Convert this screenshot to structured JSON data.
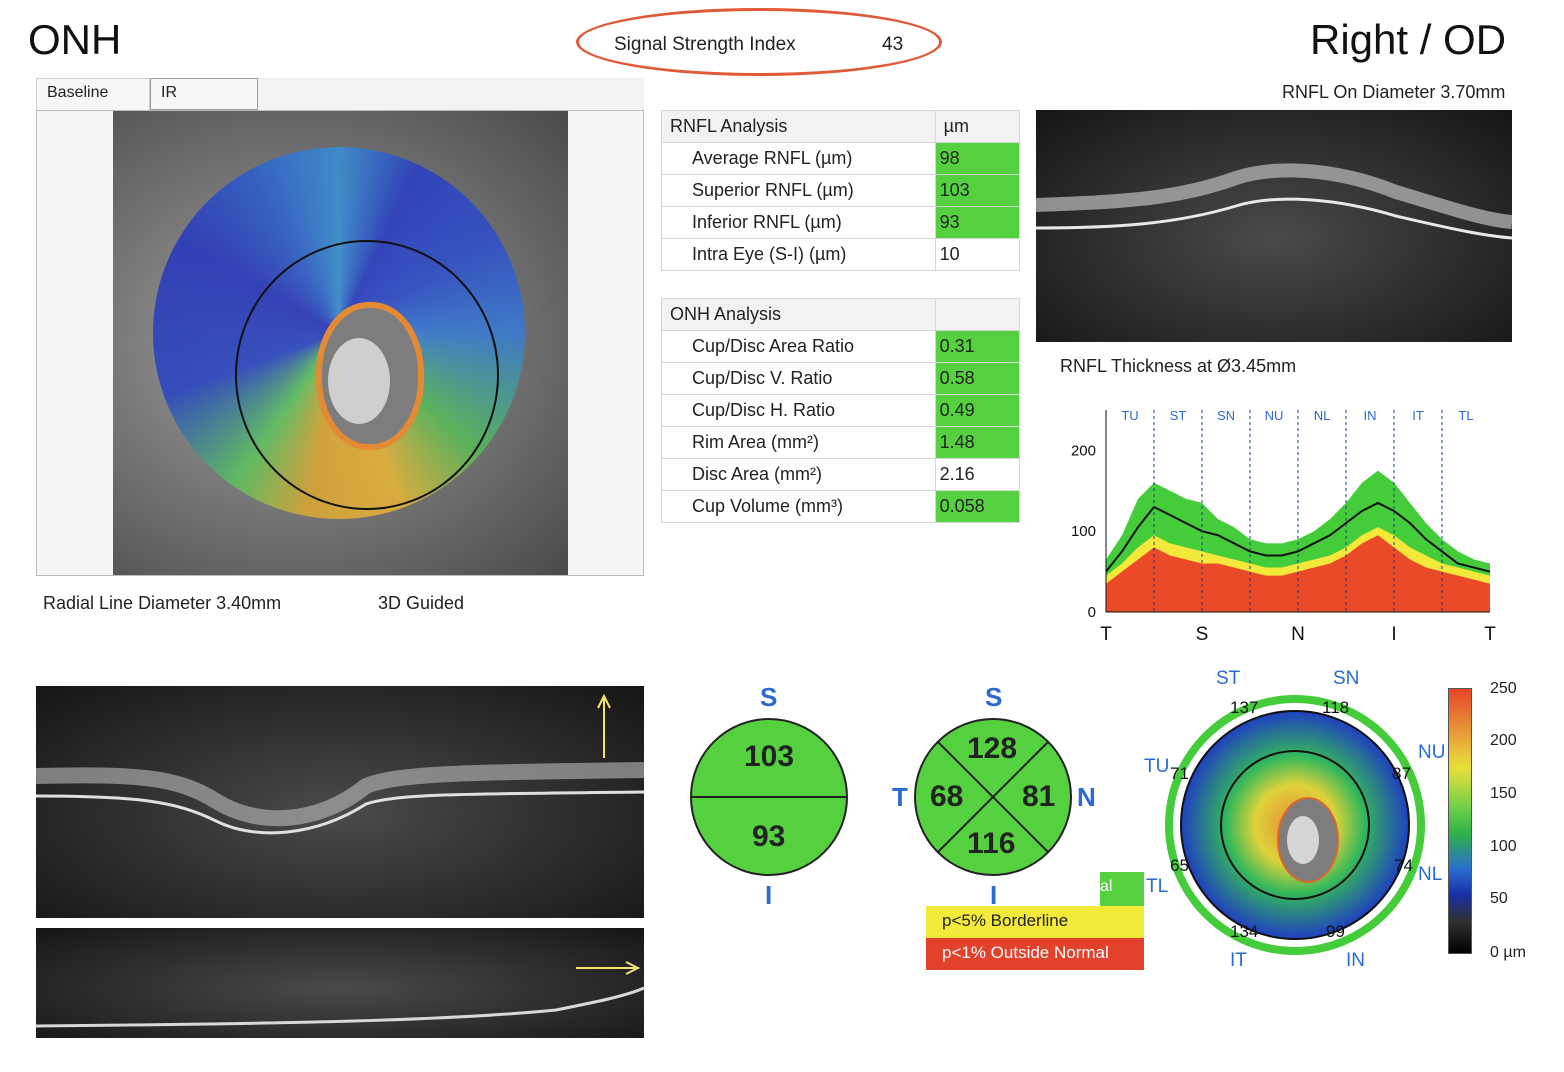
{
  "header": {
    "title": "ONH",
    "signal_label": "Signal Strength Index",
    "signal_value": "43",
    "eye": "Right / OD"
  },
  "tabs": [
    "Baseline",
    "IR"
  ],
  "fundus": {
    "radial_line": "Radial Line Diameter 3.40mm",
    "guided": "3D Guided"
  },
  "rnfl_table": {
    "title": "RNFL Analysis",
    "unit": "µm",
    "rows": [
      {
        "label": "Average RNFL (µm)",
        "value": "98",
        "status": "green"
      },
      {
        "label": "Superior RNFL (µm)",
        "value": "103",
        "status": "green"
      },
      {
        "label": "Inferior RNFL (µm)",
        "value": "93",
        "status": "green"
      },
      {
        "label": "Intra Eye (S-I) (µm)",
        "value": "10",
        "status": "none"
      }
    ]
  },
  "onh_table": {
    "title": "ONH Analysis",
    "rows": [
      {
        "label": "Cup/Disc Area Ratio",
        "value": "0.31",
        "status": "green"
      },
      {
        "label": "Cup/Disc V. Ratio",
        "value": "0.58",
        "status": "green"
      },
      {
        "label": "Cup/Disc H. Ratio",
        "value": "0.49",
        "status": "green"
      },
      {
        "label": "Rim Area (mm²)",
        "value": "1.48",
        "status": "green"
      },
      {
        "label": "Disc Area (mm²)",
        "value": "2.16",
        "status": "none"
      },
      {
        "label": "Cup Volume (mm³)",
        "value": "0.058",
        "status": "green"
      }
    ]
  },
  "bscan_top": {
    "caption": "RNFL On Diameter 3.70mm"
  },
  "chart_data": {
    "type": "area",
    "title": "RNFL Thickness at Ø3.45mm",
    "ylim": [
      0,
      250
    ],
    "yticks": [
      "200",
      "100",
      "0"
    ],
    "xlabels": [
      "T",
      "S",
      "N",
      "I",
      "T"
    ],
    "sectors": [
      "TU",
      "ST",
      "SN",
      "NU",
      "NL",
      "IN",
      "IT",
      "TL"
    ],
    "x": [
      0,
      15,
      30,
      45,
      60,
      75,
      90,
      105,
      120,
      135,
      150,
      165,
      180,
      195,
      210,
      225,
      240,
      255,
      270,
      285,
      300,
      315,
      330,
      345,
      360
    ],
    "series": [
      {
        "values": [
          50,
          75,
          105,
          130,
          120,
          110,
          100,
          95,
          85,
          75,
          70,
          70,
          75,
          85,
          95,
          110,
          125,
          135,
          125,
          110,
          90,
          75,
          60,
          55,
          50
        ],
        "color": "#111111"
      },
      {
        "values": [
          65,
          95,
          140,
          160,
          150,
          140,
          135,
          115,
          105,
          90,
          85,
          85,
          90,
          100,
          115,
          135,
          160,
          175,
          160,
          135,
          110,
          90,
          75,
          65,
          60
        ],
        "color": "#45cc3a"
      },
      {
        "values": [
          45,
          60,
          80,
          95,
          85,
          80,
          75,
          70,
          65,
          60,
          55,
          55,
          60,
          65,
          70,
          80,
          95,
          105,
          95,
          80,
          70,
          60,
          55,
          50,
          45
        ],
        "color": "#f4e83a"
      },
      {
        "values": [
          35,
          50,
          65,
          80,
          70,
          65,
          60,
          60,
          55,
          50,
          45,
          45,
          50,
          55,
          60,
          70,
          85,
          95,
          80,
          65,
          55,
          50,
          45,
          40,
          35
        ],
        "color": "#ea4a28"
      }
    ]
  },
  "quadrant_pie": {
    "top": "S",
    "bottom": "I",
    "upper": "103",
    "lower": "93"
  },
  "sector_pie": {
    "top": "S",
    "bottom": "I",
    "left": "T",
    "right": "N",
    "upper": "128",
    "lower": "116",
    "left_val": "68",
    "right_val": "81"
  },
  "legend": {
    "partial_label": "al",
    "borderline": "p<5% Borderline",
    "outside": "p<1% Outside Normal"
  },
  "clock": {
    "labels": [
      "ST",
      "SN",
      "TU",
      "NU",
      "TL",
      "NL",
      "IT",
      "IN"
    ],
    "values": [
      "137",
      "118",
      "71",
      "87",
      "65",
      "74",
      "134",
      "99"
    ]
  },
  "colorbar": {
    "ticks": [
      "250",
      "200",
      "150",
      "100",
      "50",
      "0 µm"
    ]
  }
}
